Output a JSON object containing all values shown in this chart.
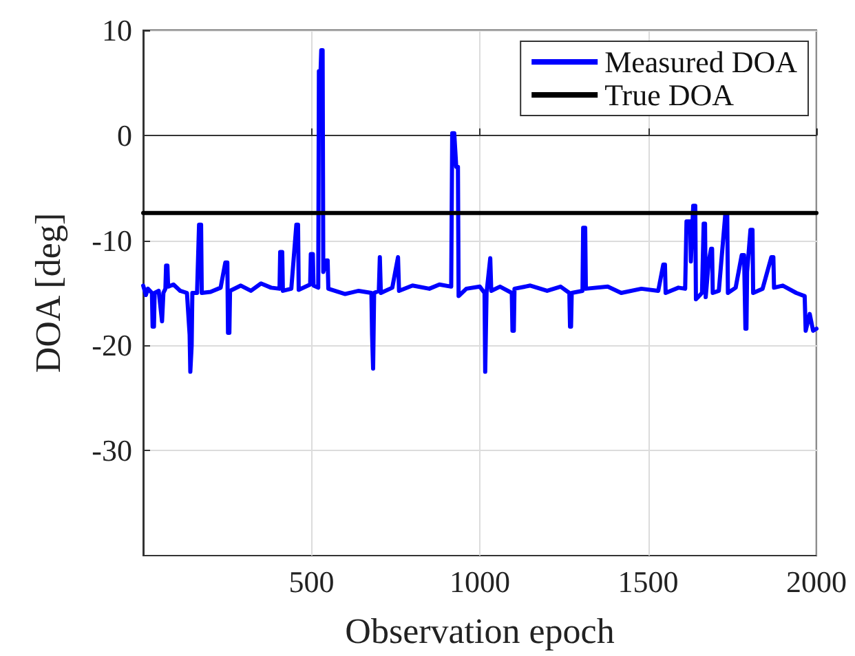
{
  "chart_data": {
    "type": "line",
    "xlabel": "Observation epoch",
    "ylabel": "DOA [deg]",
    "xlim": [
      0,
      2000
    ],
    "xticks": [
      500,
      1000,
      1500,
      2000
    ],
    "ylim": [
      -40,
      10
    ],
    "yticks": [
      -30,
      -20,
      -10,
      0,
      10
    ],
    "grid": true,
    "legend": "top right",
    "marker": "none",
    "line_style": "solid",
    "series": [
      {
        "name": "Measured DOA",
        "color": "#0000ff",
        "x": [
          0,
          8,
          14,
          26,
          28,
          32,
          34,
          46,
          56,
          58,
          60,
          66,
          68,
          72,
          74,
          90,
          110,
          130,
          138,
          140,
          144,
          146,
          160,
          166,
          172,
          174,
          200,
          230,
          244,
          250,
          252,
          256,
          258,
          290,
          320,
          350,
          380,
          405,
          407,
          413,
          415,
          440,
          455,
          460,
          462,
          496,
          498,
          504,
          506,
          520,
          522,
          527,
          529,
          533,
          535,
          544,
          548,
          550,
          600,
          640,
          678,
          680,
          683,
          686,
          700,
          703,
          706,
          740,
          757,
          760,
          800,
          850,
          880,
          915,
          918,
          924,
          930,
          935,
          937,
          960,
          1000,
          1014,
          1016,
          1020,
          1031,
          1034,
          1060,
          1095,
          1097,
          1101,
          1103,
          1150,
          1200,
          1240,
          1266,
          1268,
          1271,
          1273,
          1305,
          1307,
          1313,
          1315,
          1380,
          1420,
          1480,
          1530,
          1545,
          1550,
          1552,
          1590,
          1610,
          1614,
          1625,
          1627,
          1634,
          1640,
          1642,
          1660,
          1665,
          1669,
          1671,
          1680,
          1687,
          1690,
          1692,
          1710,
          1729,
          1735,
          1737,
          1760,
          1778,
          1785,
          1789,
          1792,
          1794,
          1804,
          1810,
          1812,
          1840,
          1866,
          1872,
          1874,
          1900,
          1940,
          1965,
          1968,
          1980,
          1990,
          2000
        ],
        "values": [
          -14.3,
          -15.2,
          -14.6,
          -15,
          -18.2,
          -18.2,
          -15,
          -14.8,
          -17.7,
          -17.7,
          -15,
          -14.6,
          -12.4,
          -12.4,
          -14.4,
          -14.2,
          -14.8,
          -15,
          -19,
          -22.5,
          -20,
          -15,
          -15,
          -8.5,
          -8.5,
          -15,
          -14.9,
          -14.5,
          -12.1,
          -12.1,
          -18.8,
          -18.8,
          -14.8,
          -14.3,
          -14.8,
          -14.1,
          -14.5,
          -14.6,
          -11.1,
          -11.1,
          -14.8,
          -14.6,
          -8.5,
          -8.5,
          -14.7,
          -14.2,
          -11.3,
          -11.3,
          -14.3,
          -14.5,
          6.1,
          6.1,
          8.1,
          8.1,
          -13,
          -11.9,
          -11.9,
          -14.6,
          -15.1,
          -14.8,
          -15,
          -19,
          -22.2,
          -15,
          -14.8,
          -11.6,
          -15,
          -14.5,
          -11.6,
          -14.8,
          -14.3,
          -14.6,
          -14.2,
          -14.4,
          0.2,
          0.2,
          -3,
          -3,
          -15.3,
          -14.6,
          -14.4,
          -15,
          -22.5,
          -15,
          -11.7,
          -14.8,
          -14.4,
          -15,
          -18.6,
          -18.6,
          -14.6,
          -14.3,
          -14.8,
          -14.4,
          -15,
          -18.2,
          -18.2,
          -15,
          -14.8,
          -8.8,
          -8.8,
          -14.6,
          -14.4,
          -15,
          -14.6,
          -14.8,
          -12.3,
          -12.3,
          -15,
          -14.5,
          -14.6,
          -8.2,
          -8.2,
          -12,
          -6.7,
          -6.7,
          -15.6,
          -15,
          -8.4,
          -8.4,
          -15.4,
          -12,
          -10.8,
          -10.8,
          -15,
          -14.8,
          -7.6,
          -7.6,
          -15,
          -14.5,
          -11.4,
          -11.4,
          -18.4,
          -18.4,
          -13,
          -9,
          -9,
          -15,
          -14.6,
          -11.6,
          -11.6,
          -14.5,
          -14.3,
          -15,
          -15.3,
          -18.6,
          -17,
          -18.6,
          -18.4
        ]
      },
      {
        "name": "True DOA",
        "color": "#000000",
        "x": [
          0,
          2000
        ],
        "values": [
          -7.4,
          -7.4
        ]
      }
    ]
  }
}
